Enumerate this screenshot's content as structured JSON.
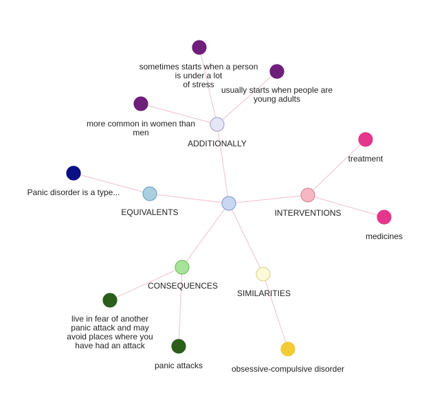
{
  "graph": {
    "center": {
      "color": "#c9d8f2",
      "stroke": "#8a9fd0"
    },
    "branches": [
      {
        "label": "ADDITIONALLY",
        "color": "#e7e6f7",
        "stroke": "#a9a6d6",
        "children": [
          {
            "label": [
              "sometimes starts when a person",
              "is under a lot",
              "of stress"
            ],
            "color": "#6e1f7a"
          },
          {
            "label": [
              "usually starts when people are",
              "young adults"
            ],
            "color": "#6e1f7a"
          },
          {
            "label": [
              "more common in women than",
              "men"
            ],
            "color": "#6e1f7a"
          }
        ]
      },
      {
        "label": "EQUIVALENTS",
        "color": "#a9cfe0",
        "stroke": "#6fa5c0",
        "children": [
          {
            "label": [
              "Panic disorder is a type..."
            ],
            "color": "#0b0f86"
          }
        ]
      },
      {
        "label": "INTERVENTIONS",
        "color": "#f4b7c3",
        "stroke": "#d98a9c",
        "children": [
          {
            "label": [
              "treatment"
            ],
            "color": "#e4368a"
          },
          {
            "label": [
              "medicines"
            ],
            "color": "#e4368a"
          }
        ]
      },
      {
        "label": "CONSEQUENCES",
        "color": "#a7e49a",
        "stroke": "#72c062",
        "children": [
          {
            "label": [
              "live in fear of another",
              "panic attack and may",
              "avoid places where you",
              "have had an attack"
            ],
            "color": "#2a5e1a"
          },
          {
            "label": [
              "panic attacks"
            ],
            "color": "#2a5e1a"
          }
        ]
      },
      {
        "label": "SIMILARITIES",
        "color": "#fbf9d8",
        "stroke": "#d8d59a",
        "children": [
          {
            "label": [
              "obsessive-compulsive disorder"
            ],
            "color": "#f2cb35"
          }
        ]
      }
    ]
  }
}
